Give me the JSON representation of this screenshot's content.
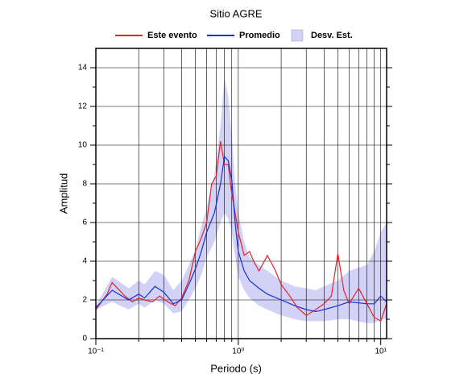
{
  "chart_data": {
    "type": "line",
    "title": "Sitio AGRE",
    "xlabel": "Periodo (s)",
    "ylabel": "Amplitud",
    "xscale": "log",
    "xlim": [
      0.1,
      11
    ],
    "ylim": [
      0,
      15
    ],
    "xticks": [
      {
        "value": 0.1,
        "label": "10⁻¹"
      },
      {
        "value": 1,
        "label": "10⁰"
      },
      {
        "value": 10,
        "label": "10¹"
      }
    ],
    "xminor": [
      0.2,
      0.3,
      0.4,
      0.5,
      0.6,
      0.7,
      0.8,
      0.9,
      2,
      3,
      4,
      5,
      6,
      7,
      8,
      9
    ],
    "yticks": [
      0,
      2,
      4,
      6,
      8,
      10,
      12,
      14
    ],
    "yminor": [
      1,
      3,
      5,
      7,
      9,
      11,
      13
    ],
    "grid": true,
    "legend": "top",
    "series": [
      {
        "name": "Desv. Est.",
        "kind": "band",
        "color": "#d2d2f7",
        "x": [
          0.1,
          0.13,
          0.17,
          0.2,
          0.22,
          0.26,
          0.3,
          0.35,
          0.4,
          0.45,
          0.5,
          0.55,
          0.6,
          0.68,
          0.75,
          0.8,
          0.85,
          0.9,
          0.95,
          1,
          1.1,
          1.2,
          1.4,
          1.6,
          2,
          2.5,
          3,
          3.5,
          4,
          5,
          6,
          8,
          9,
          10,
          11
        ],
        "upper": [
          1.7,
          3.2,
          2.6,
          3.0,
          2.8,
          3.5,
          3.3,
          2.5,
          3.0,
          3.8,
          4.6,
          5.8,
          6.8,
          8.5,
          11,
          13.5,
          12.5,
          10.5,
          8,
          6.5,
          5,
          4.2,
          3.8,
          3.5,
          3.0,
          2.7,
          2.6,
          2.5,
          2.7,
          3.0,
          3.5,
          3.8,
          4.5,
          5.5,
          6
        ],
        "lower": [
          1.5,
          1.9,
          1.5,
          1.8,
          1.6,
          2.0,
          1.8,
          1.3,
          1.4,
          2.0,
          2.6,
          3.3,
          4.2,
          5,
          6,
          6.5,
          6.2,
          5.5,
          4.2,
          3.2,
          2.5,
          2.1,
          1.7,
          1.5,
          1.2,
          1.0,
          0.9,
          0.9,
          0.9,
          1.0,
          1.0,
          0.8,
          0.8,
          1.0,
          1.0
        ]
      },
      {
        "name": "Este evento",
        "kind": "line",
        "color": "#e8202a",
        "x": [
          0.1,
          0.12,
          0.13,
          0.16,
          0.18,
          0.2,
          0.22,
          0.25,
          0.28,
          0.32,
          0.36,
          0.4,
          0.45,
          0.5,
          0.55,
          0.6,
          0.65,
          0.7,
          0.75,
          0.8,
          0.85,
          0.9,
          0.95,
          1.0,
          1.1,
          1.2,
          1.3,
          1.4,
          1.6,
          1.8,
          2.0,
          2.3,
          2.6,
          3.0,
          3.5,
          4.0,
          4.5,
          5.0,
          5.5,
          6,
          7,
          8,
          9,
          10,
          11
        ],
        "values": [
          1.5,
          2.3,
          2.9,
          2.2,
          1.9,
          2.1,
          2.0,
          1.9,
          2.2,
          1.9,
          1.7,
          2.1,
          3.0,
          4.5,
          5.2,
          6.0,
          8.0,
          8.4,
          10.2,
          9.0,
          9.0,
          7.5,
          6.5,
          5.5,
          4.3,
          4.5,
          3.9,
          3.5,
          4.3,
          3.6,
          2.8,
          2.2,
          1.6,
          1.2,
          1.5,
          1.8,
          2.2,
          4.4,
          2.5,
          1.8,
          2.6,
          1.8,
          1.1,
          0.9,
          1.8
        ]
      },
      {
        "name": "Promedio",
        "kind": "line",
        "color": "#1a2fd6",
        "x": [
          0.1,
          0.13,
          0.17,
          0.2,
          0.22,
          0.26,
          0.3,
          0.35,
          0.4,
          0.45,
          0.5,
          0.55,
          0.6,
          0.68,
          0.75,
          0.8,
          0.85,
          0.9,
          0.95,
          1,
          1.1,
          1.2,
          1.4,
          1.6,
          2,
          2.5,
          3,
          3.5,
          4,
          5,
          6,
          8,
          9,
          10,
          11
        ],
        "values": [
          1.6,
          2.5,
          2.0,
          2.3,
          2.1,
          2.7,
          2.4,
          1.8,
          2.0,
          2.8,
          3.6,
          4.5,
          5.5,
          6.5,
          8,
          9.4,
          9.2,
          8.2,
          6,
          4.5,
          3.5,
          3.0,
          2.6,
          2.3,
          2.0,
          1.7,
          1.5,
          1.4,
          1.5,
          1.7,
          1.9,
          1.8,
          1.8,
          2.2,
          1.9
        ]
      }
    ]
  }
}
